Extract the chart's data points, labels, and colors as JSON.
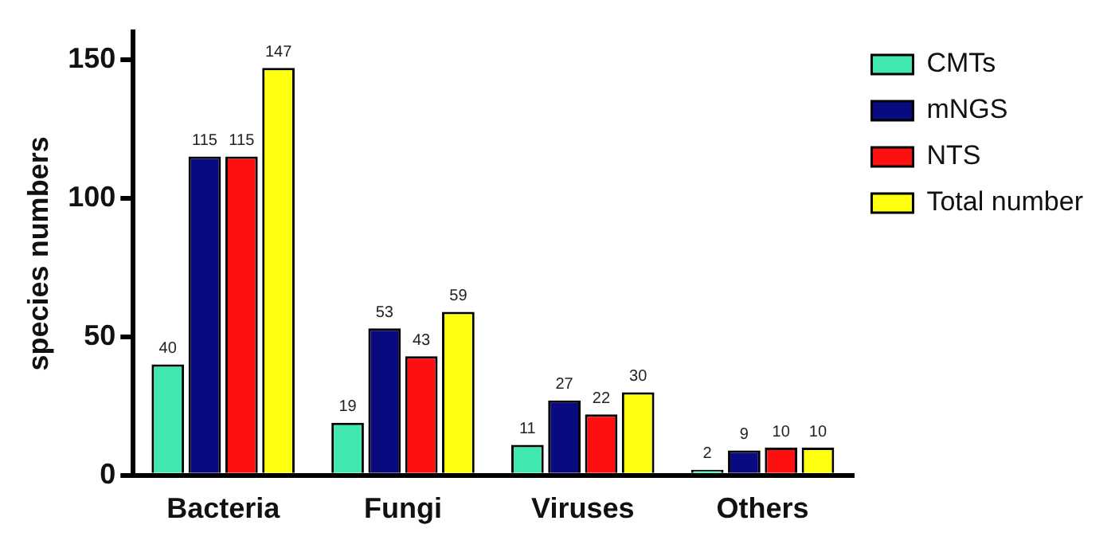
{
  "chart_data": {
    "type": "bar",
    "ylabel": "species numbers",
    "categories": [
      "Bacteria",
      "Fungi",
      "Viruses",
      "Others"
    ],
    "series": [
      {
        "name": "CMTs",
        "color": "#40e8b0",
        "values": [
          40,
          19,
          11,
          2
        ]
      },
      {
        "name": "mNGS",
        "color": "#0a0a80",
        "values": [
          115,
          53,
          27,
          9
        ]
      },
      {
        "name": "NTS",
        "color": "#ff1010",
        "values": [
          115,
          43,
          22,
          10
        ]
      },
      {
        "name": "Total number",
        "color": "#ffff10",
        "values": [
          147,
          59,
          30,
          10
        ]
      }
    ],
    "ylim": [
      0,
      160
    ],
    "yticks": [
      0,
      50,
      100,
      150
    ],
    "grid": false,
    "legend": "right",
    "data_labels": true
  }
}
